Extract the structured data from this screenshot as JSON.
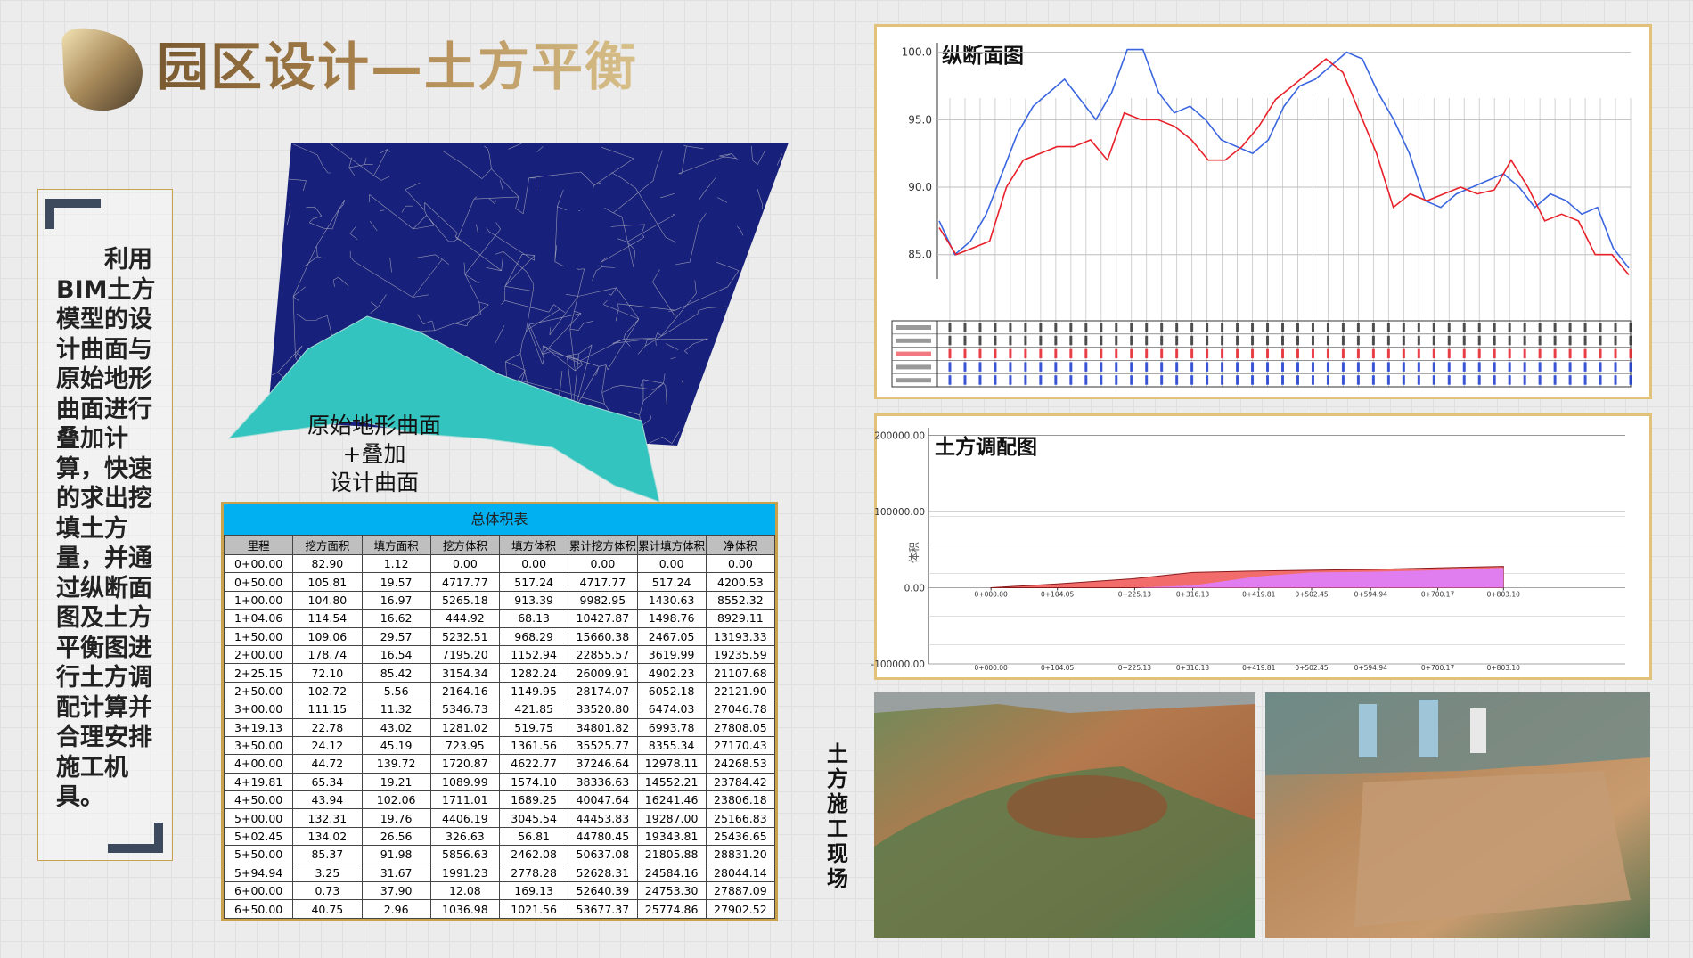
{
  "header": {
    "title": "园区设计—土方平衡"
  },
  "side_text": "利用BIM土方模型的设计曲面与原始地形曲面进行叠加计算，快速的求出挖填土方量，并通过纵断面图及土方平衡图进行土方调配计算并合理安排施工机具。",
  "terrain_label": [
    "原始地形曲面",
    "+叠加",
    "设计曲面"
  ],
  "table": {
    "title": "总体积表",
    "headers": [
      "里程",
      "挖方面积",
      "填方面积",
      "挖方体积",
      "填方体积",
      "累计挖方体积",
      "累计填方体积",
      "净体积"
    ],
    "rows": [
      [
        "0+00.00",
        "82.90",
        "1.12",
        "0.00",
        "0.00",
        "0.00",
        "0.00",
        "0.00"
      ],
      [
        "0+50.00",
        "105.81",
        "19.57",
        "4717.77",
        "517.24",
        "4717.77",
        "517.24",
        "4200.53"
      ],
      [
        "1+00.00",
        "104.80",
        "16.97",
        "5265.18",
        "913.39",
        "9982.95",
        "1430.63",
        "8552.32"
      ],
      [
        "1+04.06",
        "114.54",
        "16.62",
        "444.92",
        "68.13",
        "10427.87",
        "1498.76",
        "8929.11"
      ],
      [
        "1+50.00",
        "109.06",
        "29.57",
        "5232.51",
        "968.29",
        "15660.38",
        "2467.05",
        "13193.33"
      ],
      [
        "2+00.00",
        "178.74",
        "16.54",
        "7195.20",
        "1152.94",
        "22855.57",
        "3619.99",
        "19235.59"
      ],
      [
        "2+25.15",
        "72.10",
        "85.42",
        "3154.34",
        "1282.24",
        "26009.91",
        "4902.23",
        "21107.68"
      ],
      [
        "2+50.00",
        "102.72",
        "5.56",
        "2164.16",
        "1149.95",
        "28174.07",
        "6052.18",
        "22121.90"
      ],
      [
        "3+00.00",
        "111.15",
        "11.32",
        "5346.73",
        "421.85",
        "33520.80",
        "6474.03",
        "27046.78"
      ],
      [
        "3+19.13",
        "22.78",
        "43.02",
        "1281.02",
        "519.75",
        "34801.82",
        "6993.78",
        "27808.05"
      ],
      [
        "3+50.00",
        "24.12",
        "45.19",
        "723.95",
        "1361.56",
        "35525.77",
        "8355.34",
        "27170.43"
      ],
      [
        "4+00.00",
        "44.72",
        "139.72",
        "1720.87",
        "4622.77",
        "37246.64",
        "12978.11",
        "24268.53"
      ],
      [
        "4+19.81",
        "65.34",
        "19.21",
        "1089.99",
        "1574.10",
        "38336.63",
        "14552.21",
        "23784.42"
      ],
      [
        "4+50.00",
        "43.94",
        "102.06",
        "1711.01",
        "1689.25",
        "40047.64",
        "16241.46",
        "23806.18"
      ],
      [
        "5+00.00",
        "132.31",
        "19.76",
        "4406.19",
        "3045.54",
        "44453.83",
        "19287.00",
        "25166.83"
      ],
      [
        "5+02.45",
        "134.02",
        "26.56",
        "326.63",
        "56.81",
        "44780.45",
        "19343.81",
        "25436.65"
      ],
      [
        "5+50.00",
        "85.37",
        "91.98",
        "5856.63",
        "2462.08",
        "50637.08",
        "21805.88",
        "28831.20"
      ],
      [
        "5+94.94",
        "3.25",
        "31.67",
        "1991.23",
        "2778.28",
        "52628.31",
        "24584.16",
        "28044.14"
      ],
      [
        "6+00.00",
        "0.73",
        "37.90",
        "12.08",
        "169.13",
        "52640.39",
        "24753.30",
        "27887.09"
      ],
      [
        "6+50.00",
        "40.75",
        "2.96",
        "1036.98",
        "1021.56",
        "53677.37",
        "25774.86",
        "27902.52"
      ]
    ]
  },
  "profile_chart": {
    "type": "line",
    "title": "纵断面图",
    "ylim": [
      83.2,
      100.7
    ],
    "yticks": [
      {
        "value": 85,
        "label": "85.0"
      },
      {
        "value": 90,
        "label": "90.0"
      },
      {
        "value": 95,
        "label": "95.0"
      },
      {
        "value": 100,
        "label": "100.0"
      }
    ],
    "series": [
      {
        "color": "#3b66e0",
        "values": [
          87.5,
          85,
          86,
          88,
          91,
          94,
          96,
          97,
          98,
          96.5,
          95,
          97,
          100.2,
          100.2,
          97,
          95.5,
          96,
          95,
          93.5,
          93,
          92.5,
          93.5,
          96,
          97.5,
          98,
          99,
          100,
          99.5,
          97,
          95,
          92.5,
          89,
          88.5,
          89.5,
          90,
          90.5,
          91,
          90,
          88.5,
          89.5,
          89,
          88,
          88.5,
          85.5,
          84
        ]
      },
      {
        "color": "#e8202a",
        "values": [
          87,
          85,
          85.5,
          86,
          90,
          92,
          92.5,
          93,
          93,
          93.5,
          92,
          95.5,
          95,
          95,
          94.5,
          93.5,
          92,
          92,
          93,
          94.5,
          96.5,
          97.5,
          98.5,
          99.5,
          98.5,
          95.5,
          92.5,
          88.5,
          89.5,
          89,
          89.5,
          90,
          89.5,
          89.8,
          92,
          90,
          87.5,
          88,
          87.5,
          85,
          85,
          83.5
        ]
      }
    ]
  },
  "mass_chart": {
    "type": "area",
    "title": "土方调配图",
    "ylabel": "体积",
    "xlim": [
      -98,
      994
    ],
    "xticks": [
      {
        "value": 0,
        "label": "0+000.00"
      },
      {
        "value": 104.05,
        "label": "0+104.05"
      },
      {
        "value": 225.13,
        "label": "0+225.13"
      },
      {
        "value": 316.13,
        "label": "0+316.13"
      },
      {
        "value": 419.81,
        "label": "0+419.81"
      },
      {
        "value": 502.45,
        "label": "0+502.45"
      },
      {
        "value": 594.94,
        "label": "0+594.94"
      },
      {
        "value": 700.17,
        "label": "0+700.17"
      },
      {
        "value": 803.1,
        "label": "0+803.10"
      }
    ],
    "ylim": [
      -100000,
      210000
    ],
    "yticks": [
      {
        "value": -100000,
        "label": "-100000.00"
      },
      {
        "value": 0,
        "label": "0.00"
      },
      {
        "value": 100000,
        "label": "100000.00"
      },
      {
        "value": 200000,
        "label": "200000.00"
      }
    ],
    "series": [
      {
        "color": "#f26c6c",
        "values": [
          0,
          5000,
          12000,
          20000,
          22000,
          23000,
          24000,
          26000,
          28000
        ]
      },
      {
        "color": "#e07ef0",
        "values": [
          0,
          0,
          0,
          3000,
          15000,
          20000,
          21000,
          23000,
          26000
        ]
      }
    ]
  },
  "site_label": "土方施工现场"
}
